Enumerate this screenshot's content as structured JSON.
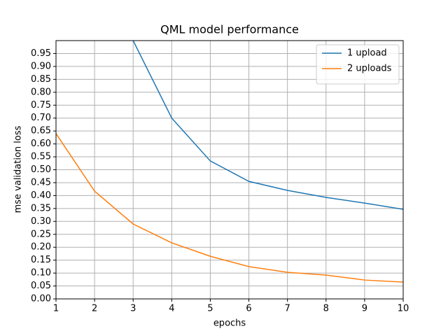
{
  "chart_data": {
    "type": "line",
    "title": "QML model performance",
    "x_label": "epochs",
    "y_label": "mse validation loss",
    "x": [
      1,
      2,
      3,
      4,
      5,
      6,
      7,
      8,
      9,
      10
    ],
    "series": [
      {
        "name": "1 upload",
        "color": "#1f77b4",
        "values": [
          null,
          null,
          1.0,
          0.7,
          0.534,
          0.455,
          0.42,
          0.393,
          0.371,
          0.347
        ]
      },
      {
        "name": "2 uploads",
        "color": "#ff7f0e",
        "values": [
          0.64,
          0.417,
          0.29,
          0.217,
          0.165,
          0.125,
          0.103,
          0.092,
          0.073,
          0.065
        ]
      }
    ],
    "xlim": [
      1,
      10
    ],
    "xticks": [
      1,
      2,
      3,
      4,
      5,
      6,
      7,
      8,
      9,
      10
    ],
    "ylim": [
      0,
      1.0
    ],
    "yticks": [
      {
        "value": 0,
        "label": "0.00"
      },
      0.05,
      {
        "value": 0.1,
        "label": "0.10"
      },
      0.15,
      {
        "value": 0.2,
        "label": "0.20"
      },
      0.25,
      {
        "value": 0.3,
        "label": "0.30"
      },
      0.35,
      {
        "value": 0.4,
        "label": "0.40"
      },
      0.45,
      {
        "value": 0.5,
        "label": "0.50"
      },
      0.55,
      {
        "value": 0.6,
        "label": "0.60"
      },
      0.65,
      {
        "value": 0.7,
        "label": "0.70"
      },
      0.75,
      {
        "value": 0.8,
        "label": "0.80"
      },
      0.85,
      {
        "value": 0.9,
        "label": "0.90"
      },
      0.95
    ],
    "grid": true,
    "legend": "upper right"
  }
}
